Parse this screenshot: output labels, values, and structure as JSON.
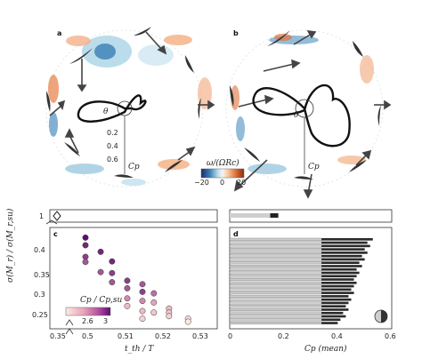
{
  "panels": {
    "a": {
      "label": "a"
    },
    "b": {
      "label": "b"
    },
    "c": {
      "label": "c"
    },
    "d": {
      "label": "d"
    }
  },
  "polar": {
    "theta_symbol": "θ",
    "r_ticks": [
      "0.2",
      "0.4",
      "0.6"
    ],
    "r_axis_label": "Cp"
  },
  "colorbar": {
    "title": "ω/(ΩRc)",
    "ticks": [
      "−20",
      "0",
      "20"
    ],
    "colors": [
      "#1c2a6b",
      "#3a7fb5",
      "#bfe0ef",
      "#f7f4ef",
      "#f6c9a6",
      "#e0733a",
      "#8a2b0e"
    ]
  },
  "strip": {
    "ytick": "1"
  },
  "chart_data": [
    {
      "type": "scatter",
      "panel": "c",
      "xlabel": "t_th / T",
      "ylabel": "σ(M_r) / σ(M_r,su)",
      "xlim": [
        0.35,
        0.53
      ],
      "ylim": [
        0.23,
        0.43
      ],
      "xtick_labels": [
        "0.35",
        "0.5",
        "0.51",
        "0.52",
        "0.53"
      ],
      "ytick_labels": [
        "0.25",
        "0.3",
        "0.35",
        "0.4"
      ],
      "colorbar_label": "Cp / Cp,su",
      "colorbar_ticks": [
        "2.6",
        "3"
      ],
      "points": [
        {
          "x": 0.5,
          "y": 0.41,
          "c": 3.0
        },
        {
          "x": 0.5,
          "y": 0.395,
          "c": 2.95
        },
        {
          "x": 0.5,
          "y": 0.372,
          "c": 2.9
        },
        {
          "x": 0.5,
          "y": 0.362,
          "c": 2.85
        },
        {
          "x": 0.504,
          "y": 0.382,
          "c": 2.95
        },
        {
          "x": 0.504,
          "y": 0.342,
          "c": 2.85
        },
        {
          "x": 0.507,
          "y": 0.363,
          "c": 2.95
        },
        {
          "x": 0.507,
          "y": 0.34,
          "c": 2.9
        },
        {
          "x": 0.507,
          "y": 0.322,
          "c": 2.85
        },
        {
          "x": 0.511,
          "y": 0.325,
          "c": 2.9
        },
        {
          "x": 0.511,
          "y": 0.31,
          "c": 2.85
        },
        {
          "x": 0.511,
          "y": 0.29,
          "c": 2.75
        },
        {
          "x": 0.511,
          "y": 0.275,
          "c": 2.6
        },
        {
          "x": 0.515,
          "y": 0.318,
          "c": 2.85
        },
        {
          "x": 0.515,
          "y": 0.303,
          "c": 2.9
        },
        {
          "x": 0.515,
          "y": 0.285,
          "c": 2.75
        },
        {
          "x": 0.515,
          "y": 0.265,
          "c": 2.6
        },
        {
          "x": 0.515,
          "y": 0.25,
          "c": 2.5
        },
        {
          "x": 0.518,
          "y": 0.3,
          "c": 2.8
        },
        {
          "x": 0.518,
          "y": 0.282,
          "c": 2.7
        },
        {
          "x": 0.518,
          "y": 0.262,
          "c": 2.55
        },
        {
          "x": 0.522,
          "y": 0.27,
          "c": 2.6
        },
        {
          "x": 0.522,
          "y": 0.262,
          "c": 2.55
        },
        {
          "x": 0.522,
          "y": 0.255,
          "c": 2.5
        },
        {
          "x": 0.527,
          "y": 0.25,
          "c": 2.45
        },
        {
          "x": 0.527,
          "y": 0.244,
          "c": 2.4
        }
      ]
    },
    {
      "type": "bar",
      "panel": "d",
      "orientation": "horizontal",
      "xlabel": "Cp (mean)",
      "xlim": [
        0,
        0.6
      ],
      "xtick_labels": [
        "0",
        "0.2",
        "0.4",
        "0.6"
      ],
      "top_bar": {
        "light": 0.15,
        "dark": 0.03
      },
      "bars": [
        {
          "light": 0.34,
          "dark": 0.19
        },
        {
          "light": 0.34,
          "dark": 0.17
        },
        {
          "light": 0.34,
          "dark": 0.18
        },
        {
          "light": 0.34,
          "dark": 0.16
        },
        {
          "light": 0.34,
          "dark": 0.17
        },
        {
          "light": 0.34,
          "dark": 0.15
        },
        {
          "light": 0.34,
          "dark": 0.16
        },
        {
          "light": 0.34,
          "dark": 0.14
        },
        {
          "light": 0.34,
          "dark": 0.15
        },
        {
          "light": 0.34,
          "dark": 0.13
        },
        {
          "light": 0.34,
          "dark": 0.14
        },
        {
          "light": 0.34,
          "dark": 0.13
        },
        {
          "light": 0.34,
          "dark": 0.12
        },
        {
          "light": 0.34,
          "dark": 0.13
        },
        {
          "light": 0.34,
          "dark": 0.12
        },
        {
          "light": 0.34,
          "dark": 0.11
        },
        {
          "light": 0.34,
          "dark": 0.12
        },
        {
          "light": 0.34,
          "dark": 0.1
        },
        {
          "light": 0.34,
          "dark": 0.11
        },
        {
          "light": 0.34,
          "dark": 0.1
        },
        {
          "light": 0.34,
          "dark": 0.09
        },
        {
          "light": 0.34,
          "dark": 0.1
        },
        {
          "light": 0.34,
          "dark": 0.08
        },
        {
          "light": 0.34,
          "dark": 0.09
        },
        {
          "light": 0.34,
          "dark": 0.07
        },
        {
          "light": 0.34,
          "dark": 0.06
        }
      ]
    }
  ]
}
